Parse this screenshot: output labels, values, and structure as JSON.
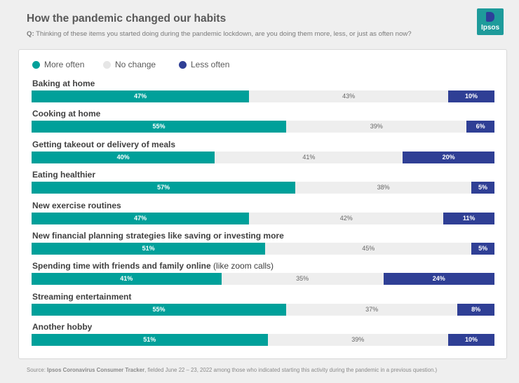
{
  "header": {
    "title": "How the pandemic changed our habits",
    "question_prefix": "Q:",
    "question_text": " Thinking of these items you started doing during the pandemic lockdown, are you doing them more, less, or just as often now?"
  },
  "logo": {
    "text": "Ipsos",
    "color": "#1e9b9b",
    "mark_color": "#2d3f9a"
  },
  "chart_data": {
    "type": "bar",
    "orientation": "horizontal",
    "stacked": true,
    "unit": "%",
    "categories": [
      "Baking at home",
      "Cooking at home",
      "Getting takeout or delivery of meals",
      "Eating healthier",
      "New exercise routines",
      "New financial planning strategies like saving or investing more",
      "Spending time with friends and family online",
      "Streaming entertainment",
      "Another hobby"
    ],
    "category_notes": [
      "",
      "",
      "",
      "",
      "",
      "",
      " (like zoom calls)",
      "",
      ""
    ],
    "series": [
      {
        "name": "More often",
        "color": "#00a09a",
        "values": [
          47,
          55,
          40,
          57,
          47,
          51,
          41,
          55,
          51
        ]
      },
      {
        "name": "No change",
        "color": "#eeeeee",
        "values": [
          43,
          39,
          41,
          38,
          42,
          45,
          35,
          37,
          39
        ]
      },
      {
        "name": "Less often",
        "color": "#2f3f95",
        "values": [
          10,
          6,
          20,
          5,
          11,
          5,
          24,
          8,
          10
        ]
      }
    ],
    "legend_position": "top-left",
    "legend_dot_colors": [
      "#00a09a",
      "#e6e6e6",
      "#2f3f95"
    ]
  },
  "footer": {
    "source_label": "Source:",
    "source_name": " Ipsos Coronavirus Consumer Tracker",
    "source_text": ", fielded June 22 – 23, 2022 among those who indicated starting this activity during the pandemic in a previous question.)"
  }
}
